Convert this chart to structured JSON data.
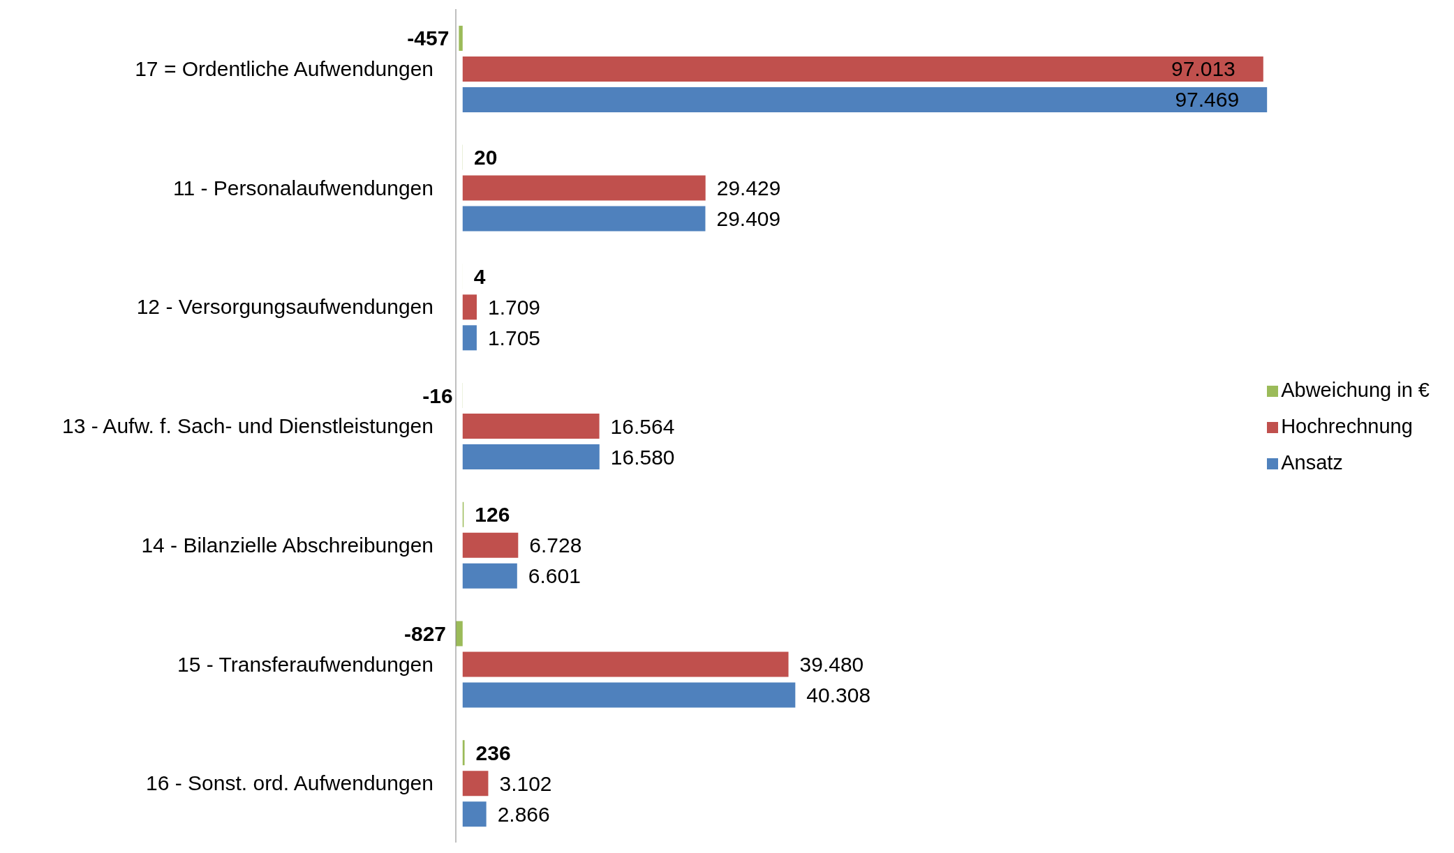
{
  "chart_data": {
    "type": "bar",
    "orientation": "horizontal",
    "categories": [
      "17 =  Ordentliche Aufwendungen",
      "11 - Personalaufwendungen",
      "12 - Versorgungsaufwendungen",
      "13 - Aufw. f. Sach- und Dienstleistungen",
      "14 - Bilanzielle Abschreibungen",
      "15 - Transferaufwendungen",
      "16 - Sonst. ord. Aufwendungen"
    ],
    "series": [
      {
        "name": "Abweichung in €",
        "color": "#9bbb59",
        "values": [
          -457,
          20,
          4,
          -16,
          126,
          -827,
          236
        ],
        "value_labels": [
          "-457",
          "20",
          "4",
          "-16",
          "126",
          "-827",
          "236"
        ]
      },
      {
        "name": "Hochrechnung",
        "color": "#c0504d",
        "values": [
          97013,
          29429,
          1709,
          16564,
          6728,
          39480,
          3102
        ],
        "value_labels": [
          "97.013",
          "29.429",
          "1.709",
          "16.564",
          "6.728",
          "39.480",
          "3.102"
        ]
      },
      {
        "name": "Ansatz",
        "color": "#4f81bd",
        "values": [
          97469,
          29409,
          1705,
          16580,
          6601,
          40308,
          2866
        ],
        "value_labels": [
          "97.469",
          "29.409",
          "1.705",
          "16.580",
          "6.601",
          "40.308",
          "2.866"
        ]
      }
    ],
    "legend": "right",
    "tick_labels": "y",
    "grid": false
  }
}
